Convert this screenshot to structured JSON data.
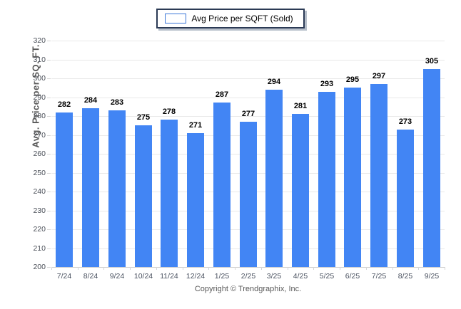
{
  "legend": {
    "label": "Avg Price per SQFT (Sold)"
  },
  "footer": {
    "copyright": "Copyright © Trendgraphix, Inc."
  },
  "colors": {
    "bar": "#4285F4",
    "legend_border": "#2b3a55",
    "gridline": "#e9e9e9"
  },
  "chart_data": {
    "type": "bar",
    "title": "",
    "series_name": "Avg Price per SQFT (Sold)",
    "categories": [
      "7/24",
      "8/24",
      "9/24",
      "10/24",
      "11/24",
      "12/24",
      "1/25",
      "2/25",
      "3/25",
      "4/25",
      "5/25",
      "6/25",
      "7/25",
      "8/25",
      "9/25"
    ],
    "values": [
      282,
      284,
      283,
      275,
      278,
      271,
      287,
      277,
      294,
      281,
      293,
      295,
      297,
      273,
      305
    ],
    "xlabel": "",
    "ylabel": "Avg. Price per SQ. FT.",
    "ylim": [
      200,
      320
    ],
    "ytick_step": 10,
    "grid": true,
    "legend_position": "top-center",
    "bar_color": "#4285F4"
  }
}
